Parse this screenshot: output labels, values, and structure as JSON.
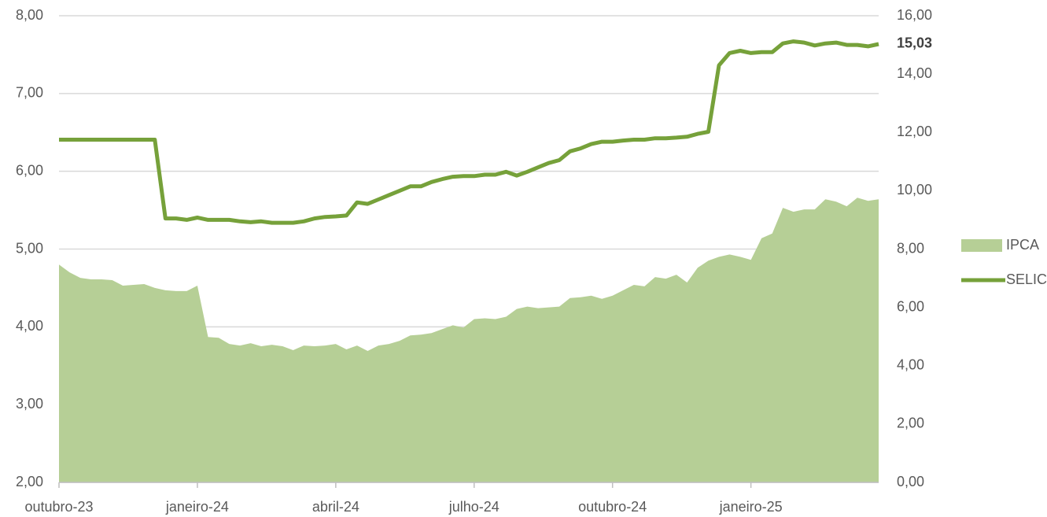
{
  "chart_data": {
    "type": "area_line",
    "categories": [
      "outubro-23",
      null,
      null,
      null,
      null,
      null,
      null,
      null,
      null,
      null,
      null,
      null,
      null,
      "janeiro-24",
      null,
      null,
      null,
      null,
      null,
      null,
      null,
      null,
      null,
      null,
      null,
      null,
      "abril-24",
      null,
      null,
      null,
      null,
      null,
      null,
      null,
      null,
      null,
      null,
      null,
      null,
      "julho-24",
      null,
      null,
      null,
      null,
      null,
      null,
      null,
      null,
      null,
      null,
      null,
      null,
      "outubro-24",
      null,
      null,
      null,
      null,
      null,
      null,
      null,
      null,
      null,
      null,
      null,
      null,
      "janeiro-25",
      null,
      null,
      null,
      null,
      null,
      null,
      null,
      null,
      null,
      null,
      null,
      null
    ],
    "series": [
      {
        "name": "IPCA",
        "kind": "area",
        "color": "#b6cf96",
        "values": [
          4.8,
          4.7,
          4.63,
          4.61,
          4.61,
          4.6,
          4.53,
          4.54,
          4.55,
          4.5,
          4.47,
          4.46,
          4.46,
          4.53,
          3.87,
          3.86,
          3.78,
          3.76,
          3.79,
          3.75,
          3.77,
          3.75,
          3.7,
          3.76,
          3.75,
          3.76,
          3.78,
          3.71,
          3.76,
          3.69,
          3.76,
          3.78,
          3.82,
          3.89,
          3.9,
          3.92,
          3.97,
          4.02,
          3.99,
          4.1,
          4.11,
          4.1,
          4.13,
          4.23,
          4.26,
          4.24,
          4.25,
          4.26,
          4.37,
          4.38,
          4.4,
          4.36,
          4.4,
          4.47,
          4.54,
          4.52,
          4.64,
          4.62,
          4.67,
          4.57,
          4.76,
          4.85,
          4.9,
          4.93,
          4.9,
          4.86,
          5.14,
          5.2,
          5.53,
          5.48,
          5.51,
          5.51,
          5.64,
          5.61,
          5.55,
          5.66,
          5.62,
          5.64
        ]
      },
      {
        "name": "SELIC",
        "kind": "line",
        "axis": "y2",
        "color": "#76a13a",
        "values": [
          11.75,
          11.75,
          11.75,
          11.75,
          11.75,
          11.75,
          11.75,
          11.75,
          11.75,
          11.75,
          9.05,
          9.05,
          9.0,
          9.08,
          9.0,
          9.0,
          9.0,
          8.95,
          8.92,
          8.95,
          8.9,
          8.9,
          8.9,
          8.95,
          9.05,
          9.1,
          9.12,
          9.15,
          9.6,
          9.55,
          9.7,
          9.85,
          10.0,
          10.15,
          10.15,
          10.3,
          10.4,
          10.48,
          10.5,
          10.5,
          10.55,
          10.55,
          10.65,
          10.52,
          10.65,
          10.8,
          10.95,
          11.05,
          11.35,
          11.45,
          11.6,
          11.68,
          11.68,
          11.72,
          11.75,
          11.75,
          11.8,
          11.8,
          11.82,
          11.85,
          11.95,
          12.02,
          14.3,
          14.72,
          14.8,
          14.72,
          14.75,
          14.75,
          15.05,
          15.12,
          15.08,
          14.98,
          15.05,
          15.08,
          15.0,
          15.0,
          14.95,
          15.03
        ]
      }
    ],
    "ylim": [
      2,
      8
    ],
    "yticks": [
      {
        "value": 2,
        "label": "2,00"
      },
      {
        "value": 3,
        "label": "3,00"
      },
      {
        "value": 4,
        "label": "4,00"
      },
      {
        "value": 5,
        "label": "5,00"
      },
      {
        "value": 6,
        "label": "6,00"
      },
      {
        "value": 7,
        "label": "7,00"
      },
      {
        "value": 8,
        "label": "8,00"
      }
    ],
    "y2lim": [
      0,
      16
    ],
    "y2ticks": [
      {
        "value": 0,
        "label": "0,00"
      },
      {
        "value": 2,
        "label": "2,00"
      },
      {
        "value": 4,
        "label": "4,00"
      },
      {
        "value": 6,
        "label": "6,00"
      },
      {
        "value": 8,
        "label": "8,00"
      },
      {
        "value": 10,
        "label": "10,00"
      },
      {
        "value": 12,
        "label": "12,00"
      },
      {
        "value": 14,
        "label": "14,00"
      },
      {
        "value": 15.03,
        "label": "15,03"
      },
      {
        "value": 16,
        "label": "16,00"
      }
    ],
    "grid": true,
    "legend": "right"
  }
}
